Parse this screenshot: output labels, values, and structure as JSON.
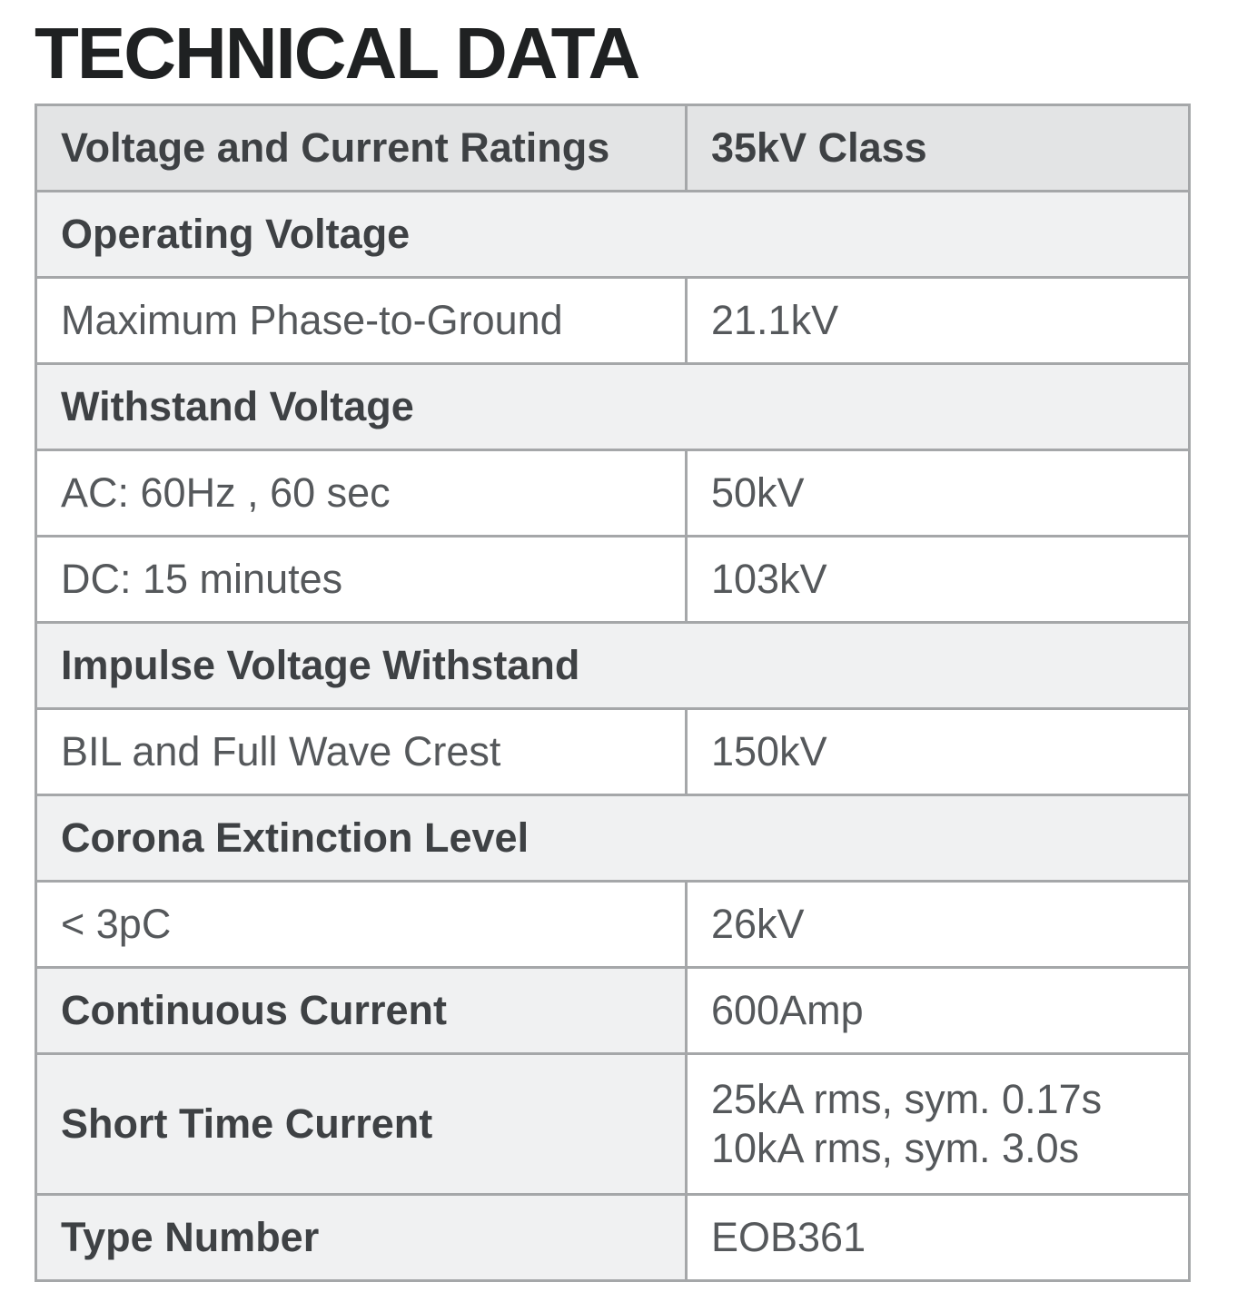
{
  "page": {
    "title": "TECHNICAL DATA"
  },
  "table": {
    "header": {
      "label": "Voltage and Current Ratings",
      "value": "35kV Class"
    },
    "rows": [
      {
        "type": "section",
        "label": "Operating Voltage"
      },
      {
        "type": "data",
        "label": "Maximum Phase-to-Ground",
        "value": "21.1kV"
      },
      {
        "type": "section",
        "label": "Withstand Voltage"
      },
      {
        "type": "data",
        "label": "AC: 60Hz , 60 sec",
        "value": "50kV"
      },
      {
        "type": "data",
        "label": "DC: 15 minutes",
        "value": "103kV"
      },
      {
        "type": "section",
        "label": "Impulse Voltage Withstand"
      },
      {
        "type": "data",
        "label": "BIL and Full Wave Crest",
        "value": "150kV"
      },
      {
        "type": "section",
        "label": "Corona Extinction Level"
      },
      {
        "type": "data",
        "label": "< 3pC",
        "value": "26kV"
      },
      {
        "type": "data-strong",
        "label": "Continuous Current",
        "value": "600Amp"
      },
      {
        "type": "data-strong",
        "label": "Short Time Current",
        "value_lines": [
          "25kA rms, sym. 0.17s",
          "10kA rms, sym. 3.0s"
        ]
      },
      {
        "type": "data-strong",
        "label": "Type Number",
        "value": "EOB361"
      }
    ]
  },
  "colors": {
    "title_text": "#1f2122",
    "header_row_bg": "#e3e4e5",
    "section_row_bg": "#f0f1f2",
    "data_row_bg": "#ffffff",
    "bold_text": "#3e4144",
    "regular_text": "#55585b",
    "border": "#a5a7a9"
  }
}
